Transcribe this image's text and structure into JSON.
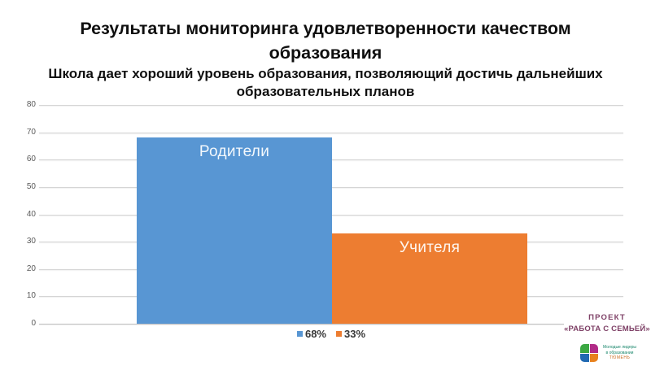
{
  "slide": {
    "title": "Результаты мониторинга удовлетворенности качеством образования",
    "subtitle": "Школа дает хороший уровень образования, позволяющий достичь дальнейших образовательных планов"
  },
  "chart_data": {
    "type": "bar",
    "categories": [
      "Родители",
      "Учителя"
    ],
    "values": [
      68,
      33
    ],
    "legend": [
      "68%",
      "33%"
    ],
    "bar_colors": [
      "#5896D3",
      "#ED7D31"
    ],
    "title": "",
    "xlabel": "",
    "ylabel": "",
    "ylim": [
      0,
      80
    ],
    "yticks": [
      0,
      10,
      20,
      30,
      40,
      50,
      60,
      70,
      80
    ],
    "grid": true,
    "legend_position": "bottom-center",
    "bar_label_position": "inside-top"
  },
  "footer": {
    "project_line1": "ПРОЕКТ",
    "project_line2": "«РАБОТА С СЕМЬЕЙ»",
    "project_color": "#7E4066",
    "logo_caption_line1": "Молодые лидеры",
    "logo_caption_line2": "в образовании",
    "logo_caption_line3": "ТЮМЕНЬ",
    "logo_colors": {
      "tl": "#3BA843",
      "tr": "#B12B87",
      "bl": "#2069B2",
      "br": "#E8821E"
    }
  }
}
